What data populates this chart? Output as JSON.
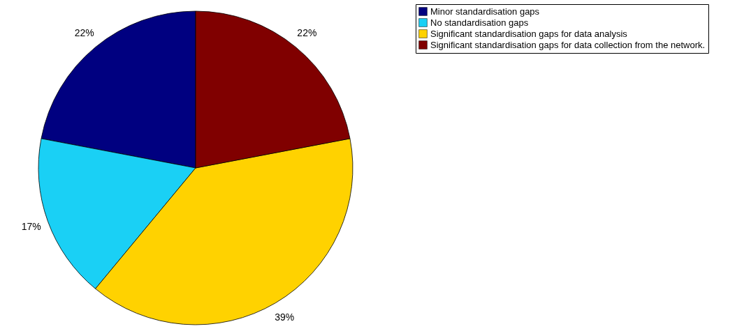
{
  "chart_data": {
    "type": "pie",
    "categories": [
      "Minor standardisation gaps",
      "No standardisation gaps",
      "Significant standardisation gaps for data analysis",
      "Significant standardisation gaps for data collection from the network."
    ],
    "values": [
      22,
      17,
      39,
      22
    ],
    "value_labels": [
      "22%",
      "17%",
      "39%",
      "22%"
    ],
    "colors": [
      "#000080",
      "#1ad0f5",
      "#ffd200",
      "#800000"
    ],
    "legend": "right"
  }
}
